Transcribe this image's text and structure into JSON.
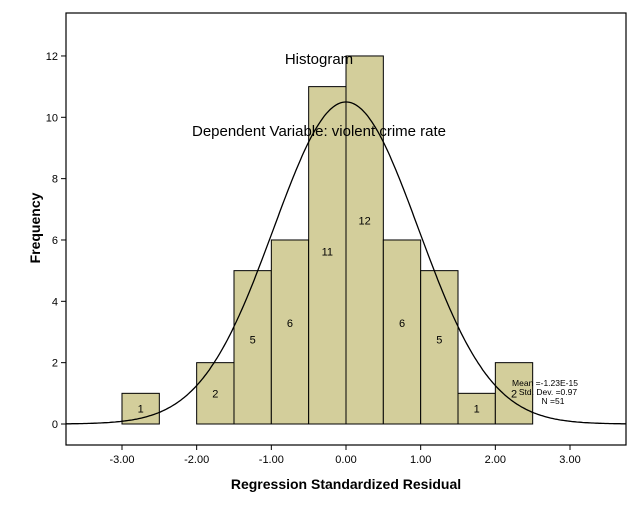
{
  "chart_data": {
    "type": "bar",
    "subtype": "histogram",
    "title": "Histogram",
    "subtitle": "Dependent Variable: violent crime rate",
    "xlabel": "Regression Standardized Residual",
    "ylabel": "Frequency",
    "bin_width": 0.5,
    "bins": [
      {
        "start": -3.0,
        "end": -2.5,
        "count": 1
      },
      {
        "start": -2.0,
        "end": -1.5,
        "count": 2
      },
      {
        "start": -1.5,
        "end": -1.0,
        "count": 5
      },
      {
        "start": -1.0,
        "end": -0.5,
        "count": 6
      },
      {
        "start": -0.5,
        "end": 0.0,
        "count": 11
      },
      {
        "start": 0.0,
        "end": 0.5,
        "count": 12
      },
      {
        "start": 0.5,
        "end": 1.0,
        "count": 6
      },
      {
        "start": 1.0,
        "end": 1.5,
        "count": 5
      },
      {
        "start": 1.5,
        "end": 2.0,
        "count": 1
      },
      {
        "start": 2.0,
        "end": 2.5,
        "count": 2
      }
    ],
    "categories": [
      "-3.00 to -2.50",
      "-2.00 to -1.50",
      "-1.50 to -1.00",
      "-1.00 to -0.50",
      "-0.50 to 0.00",
      "0.00 to 0.50",
      "0.50 to 1.00",
      "1.00 to 1.50",
      "1.50 to 2.00",
      "2.00 to 2.50"
    ],
    "values": [
      1,
      2,
      5,
      6,
      11,
      12,
      6,
      5,
      1,
      2
    ],
    "x_ticks": [
      "-3.00",
      "-2.00",
      "-1.00",
      "0.00",
      "1.00",
      "2.00",
      "3.00"
    ],
    "y_ticks": [
      "0",
      "2",
      "4",
      "6",
      "8",
      "10",
      "12"
    ],
    "xlim": [
      -3.75,
      3.75
    ],
    "ylim": [
      -0.7,
      13.3
    ],
    "grid": false,
    "normal_curve": {
      "mean": 0.0,
      "std": 0.97,
      "n": 51,
      "peak": 10.5
    },
    "annotation": {
      "mean": "Mean =-1.23E-15",
      "std": "Std. Dev. =0.97",
      "n": "N =51"
    },
    "colors": {
      "bar_fill": "#d3ce9b",
      "bar_edge": "#000000",
      "curve": "#000000",
      "frame": "#000000"
    }
  }
}
